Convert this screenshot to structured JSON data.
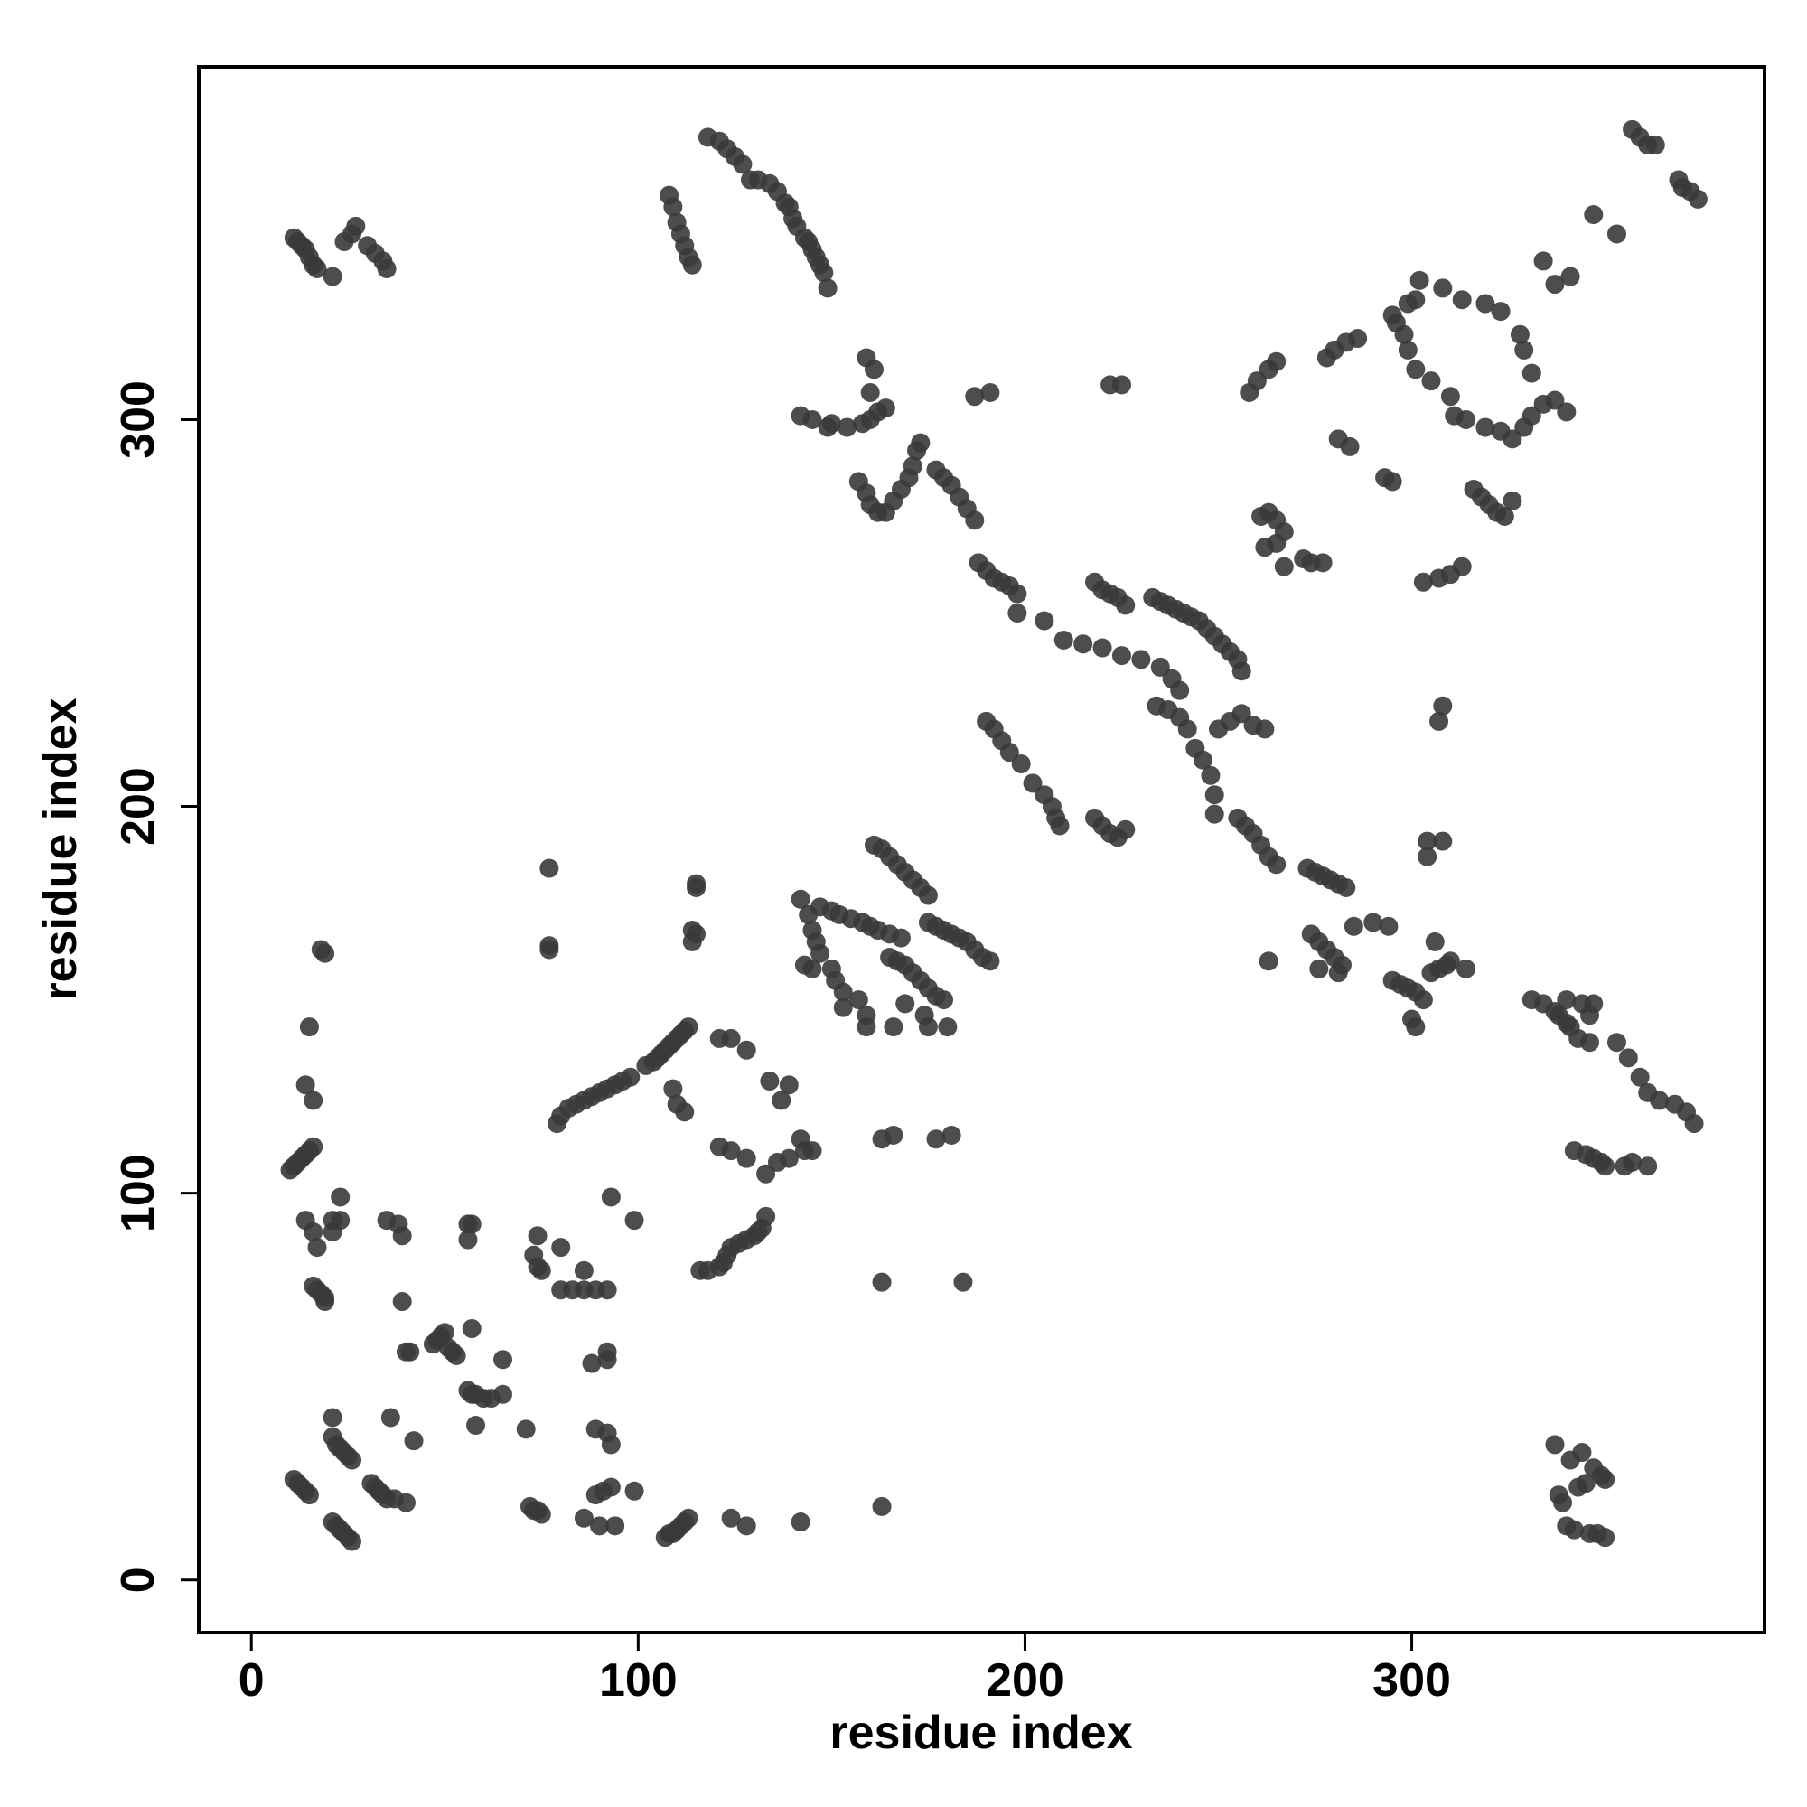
{
  "chart_data": {
    "type": "scatter",
    "xlabel": "residue index",
    "ylabel": "residue index",
    "xlim": [
      -13.6,
      391.2
    ],
    "ylim": [
      -13.6,
      391.2
    ],
    "xticks": [
      0,
      100,
      200,
      300
    ],
    "yticks": [
      0,
      100,
      200,
      300
    ],
    "color": "#3a3a3a",
    "x": [
      11,
      12,
      13,
      14,
      15,
      21,
      22,
      23,
      24,
      25,
      26,
      21,
      22,
      23,
      24,
      25,
      26,
      21,
      31,
      32,
      33,
      34,
      35,
      37,
      40,
      36,
      42,
      39,
      40,
      41,
      47,
      48,
      49,
      50,
      51,
      52,
      53,
      57,
      56,
      57,
      58,
      60,
      62,
      65,
      58,
      65,
      71,
      72,
      73,
      74,
      75,
      35,
      38,
      39,
      56,
      57,
      56,
      74,
      73,
      74,
      75,
      80,
      86,
      80,
      83,
      86,
      89,
      92,
      88,
      92,
      92,
      89,
      92,
      93,
      86,
      89,
      91,
      93,
      90,
      94,
      99,
      93,
      99,
      107,
      108,
      109,
      110,
      111,
      112,
      113,
      124,
      128,
      142,
      163,
      163,
      184,
      10,
      11,
      12,
      13,
      14,
      15,
      16,
      14,
      16,
      17,
      16,
      17,
      18,
      19,
      19,
      23,
      21,
      23,
      21,
      14,
      16,
      15,
      18,
      19,
      77,
      77,
      77,
      337,
      338,
      339,
      340,
      341,
      342,
      343,
      344,
      345,
      346,
      347,
      348,
      349,
      350,
      350,
      342,
      345,
      347,
      349,
      350,
      355,
      357,
      361,
      116,
      118,
      121,
      122,
      123,
      124,
      126,
      128,
      130,
      131,
      132,
      133,
      102,
      104,
      105,
      106,
      107,
      108,
      109,
      110,
      111,
      112,
      113,
      109,
      110,
      112,
      121,
      124,
      128,
      133,
      136,
      139,
      142,
      143,
      145,
      137,
      139,
      134,
      128,
      124,
      121,
      79,
      80,
      82,
      84,
      86,
      88,
      90,
      92,
      94,
      96,
      98,
      115,
      115,
      114,
      115,
      114,
      142,
      144,
      145,
      146,
      147,
      143,
      145,
      150,
      151,
      153,
      153,
      157,
      159,
      159,
      147,
      150,
      152,
      155,
      158,
      160,
      162,
      165,
      168,
      161,
      163,
      165,
      167,
      169,
      171,
      173,
      175,
      165,
      167,
      169,
      171,
      173,
      175,
      177,
      179,
      174,
      175,
      166,
      169,
      175,
      177,
      179,
      181,
      183,
      185,
      187,
      189,
      191,
      163,
      166,
      177,
      181,
      180,
      142,
      145,
      149,
      150,
      154,
      158,
      160,
      162,
      164,
      160,
      161,
      159,
      157,
      159,
      160,
      162,
      164,
      166,
      168,
      170,
      171,
      172,
      173,
      177,
      179,
      181,
      183,
      185,
      187,
      188,
      190,
      192,
      194,
      196,
      198,
      187,
      191,
      190,
      192,
      194,
      196,
      199,
      202,
      205,
      207,
      208,
      209,
      198,
      205,
      210,
      215,
      220,
      225,
      230,
      235,
      238,
      240,
      218,
      220,
      222,
      224,
      226,
      218,
      220,
      222,
      224,
      226,
      222,
      225,
      233,
      235,
      237,
      239,
      241,
      243,
      245,
      247,
      249,
      251,
      253,
      255,
      256,
      234,
      237,
      240,
      242,
      244,
      246,
      248,
      250,
      253,
      256,
      259,
      262,
      249,
      249,
      255,
      257,
      259,
      261,
      263,
      265,
      273,
      275,
      277,
      279,
      281,
      283,
      274,
      276,
      278,
      280,
      282,
      276,
      281,
      285,
      290,
      294,
      295,
      297,
      299,
      301,
      303,
      305,
      307,
      309,
      300,
      301,
      306,
      304,
      308,
      304,
      310,
      314,
      263,
      295,
      296,
      298,
      299,
      301,
      305,
      310,
      311,
      314,
      319,
      323,
      326,
      329,
      331,
      334,
      337,
      340,
      331,
      329,
      328,
      323,
      319,
      313,
      308,
      302,
      301,
      299,
      316,
      318,
      320,
      322,
      324,
      326,
      303,
      307,
      310,
      313,
      308,
      307,
      278,
      280,
      283,
      286,
      281,
      284,
      293,
      295,
      258,
      260,
      263,
      265,
      261,
      263,
      265,
      267,
      262,
      265,
      267,
      272,
      274,
      277,
      334,
      337,
      341,
      347,
      353,
      357,
      359,
      361,
      363,
      369,
      370,
      372,
      374,
      11,
      12,
      13,
      14,
      15,
      16,
      17,
      21,
      24,
      26,
      27,
      30,
      32,
      34,
      35,
      108,
      109,
      110,
      111,
      112,
      113,
      114,
      118,
      121,
      123,
      125,
      127,
      129,
      131,
      134,
      136,
      138,
      139,
      140,
      141,
      143,
      144,
      145,
      146,
      147,
      148,
      149,
      331,
      334,
      337,
      338,
      340,
      341,
      343,
      346,
      353,
      356,
      359,
      361,
      364,
      368,
      371,
      373,
      340,
      344,
      347,
      346
    ],
    "values": [
      26,
      25,
      24,
      23,
      22,
      15,
      14,
      13,
      12,
      11,
      10,
      37,
      35,
      34,
      33,
      32,
      31,
      42,
      25,
      24,
      23,
      22,
      21,
      21,
      20,
      42,
      36,
      72,
      59,
      59,
      61,
      62,
      63,
      64,
      60,
      59,
      58,
      65,
      49,
      48,
      48,
      47,
      47,
      48,
      40,
      57,
      39,
      19,
      18,
      18,
      17,
      93,
      92,
      89,
      92,
      92,
      88,
      89,
      84,
      81,
      80,
      86,
      80,
      75,
      75,
      75,
      75,
      75,
      56,
      57,
      59,
      39,
      38,
      35,
      16,
      22,
      23,
      24,
      14,
      14,
      23,
      99,
      93,
      11,
      12,
      12,
      13,
      14,
      15,
      16,
      16,
      14,
      15,
      19,
      77,
      77,
      106,
      107,
      108,
      109,
      110,
      111,
      112,
      93,
      90,
      86,
      76,
      75,
      74,
      73,
      72,
      99,
      93,
      93,
      90,
      128,
      124,
      143,
      163,
      162,
      184,
      164,
      163,
      35,
      22,
      20,
      14,
      31,
      13,
      24,
      33,
      25,
      12,
      29,
      12,
      27,
      11,
      26,
      111,
      110,
      109,
      108,
      107,
      107,
      108,
      107,
      80,
      80,
      81,
      82,
      84,
      86,
      87,
      88,
      89,
      90,
      91,
      94,
      133,
      134,
      135,
      136,
      137,
      138,
      139,
      140,
      141,
      142,
      143,
      127,
      123,
      121,
      112,
      111,
      109,
      105,
      108,
      109,
      114,
      111,
      111,
      124,
      128,
      129,
      137,
      140,
      140,
      118,
      120,
      122,
      123,
      124,
      125,
      126,
      127,
      128,
      129,
      130,
      180,
      179,
      168,
      167,
      165,
      176,
      172,
      168,
      165,
      162,
      159,
      158,
      158,
      155,
      152,
      148,
      150,
      146,
      143,
      174,
      173,
      172,
      171,
      170,
      169,
      168,
      167,
      166,
      190,
      189,
      187,
      185,
      183,
      181,
      179,
      177,
      161,
      160,
      159,
      157,
      155,
      153,
      151,
      150,
      146,
      143,
      143,
      149,
      170,
      169,
      168,
      167,
      166,
      165,
      163,
      161,
      160,
      114,
      115,
      114,
      115,
      143,
      301,
      300,
      298,
      299,
      298,
      299,
      300,
      302,
      303,
      307,
      313,
      316,
      284,
      281,
      278,
      276,
      276,
      279,
      282,
      285,
      288,
      292,
      294,
      287,
      285,
      283,
      280,
      277,
      274,
      263,
      261,
      259,
      258,
      257,
      255,
      306,
      307,
      222,
      220,
      217,
      214,
      211,
      206,
      203,
      200,
      197,
      195,
      250,
      248,
      243,
      242,
      241,
      239,
      238,
      236,
      233,
      230,
      258,
      256,
      255,
      254,
      252,
      197,
      195,
      193,
      192,
      194,
      309,
      309,
      254,
      253,
      252,
      251,
      250,
      249,
      248,
      246,
      244,
      242,
      240,
      238,
      235,
      226,
      225,
      223,
      220,
      215,
      212,
      208,
      220,
      222,
      224,
      221,
      220,
      203,
      198,
      197,
      195,
      193,
      190,
      187,
      185,
      184,
      183,
      182,
      181,
      180,
      179,
      167,
      165,
      163,
      161,
      159,
      158,
      157,
      169,
      170,
      169,
      155,
      154,
      153,
      152,
      150,
      157,
      158,
      159,
      145,
      143,
      165,
      191,
      191,
      187,
      160,
      158,
      160,
      327,
      325,
      322,
      318,
      313,
      310,
      306,
      301,
      300,
      298,
      297,
      295,
      298,
      301,
      304,
      305,
      302,
      312,
      318,
      322,
      328,
      330,
      331,
      334,
      336,
      331,
      330,
      282,
      280,
      278,
      276,
      275,
      279,
      258,
      259,
      260,
      262,
      226,
      222,
      316,
      318,
      320,
      321,
      295,
      293,
      285,
      284,
      307,
      310,
      313,
      315,
      275,
      276,
      274,
      271,
      267,
      268,
      262,
      264,
      263,
      263,
      341,
      335,
      337,
      353,
      348,
      375,
      373,
      371,
      371,
      362,
      360,
      359,
      357,
      347,
      346,
      345,
      344,
      342,
      340,
      339,
      337,
      346,
      348,
      350,
      345,
      343,
      341,
      339,
      358,
      355,
      351,
      348,
      345,
      342,
      340,
      373,
      372,
      370,
      368,
      366,
      362,
      362,
      361,
      359,
      356,
      355,
      352,
      350,
      347,
      346,
      344,
      342,
      340,
      338,
      334,
      150,
      149,
      147,
      146,
      144,
      143,
      140,
      139,
      139,
      135,
      130,
      126,
      124,
      123,
      121,
      118,
      150,
      149,
      149,
      146
    ]
  }
}
